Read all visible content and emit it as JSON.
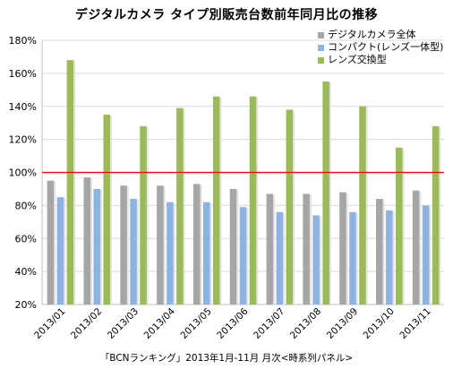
{
  "chart_data": {
    "type": "bar",
    "title": "デジタルカメラ タイプ別販売台数前年同月比の推移",
    "categories": [
      "2013/01",
      "2013/02",
      "2013/03",
      "2013/04",
      "2013/05",
      "2013/06",
      "2013/07",
      "2013/08",
      "2013/09",
      "2013/10",
      "2013/11"
    ],
    "series": [
      {
        "name": "デジタルカメラ全体",
        "color": "#a6a6a6",
        "values": [
          95,
          97,
          92,
          92,
          93,
          90,
          87,
          87,
          88,
          84,
          89
        ]
      },
      {
        "name": "コンパクト(レンズ一体型)",
        "color": "#8db3e2",
        "values": [
          85,
          90,
          84,
          82,
          82,
          79,
          76,
          74,
          76,
          77,
          80
        ]
      },
      {
        "name": "レンズ交換型",
        "color": "#9bbb59",
        "values": [
          168,
          135,
          128,
          139,
          146,
          146,
          138,
          155,
          140,
          115,
          128
        ]
      }
    ],
    "ylim": [
      20,
      180
    ],
    "yticks": [
      20,
      40,
      60,
      80,
      100,
      120,
      140,
      160,
      180
    ],
    "ytick_labels": [
      "20%",
      "40%",
      "60%",
      "80%",
      "100%",
      "120%",
      "140%",
      "160%",
      "180%"
    ],
    "reference_line": {
      "value": 100,
      "color": "#ff0000"
    },
    "grid": true,
    "legend_position": "top-right",
    "source": "「BCNランキング」2013年1月-11月 月次<時系列パネル>"
  }
}
